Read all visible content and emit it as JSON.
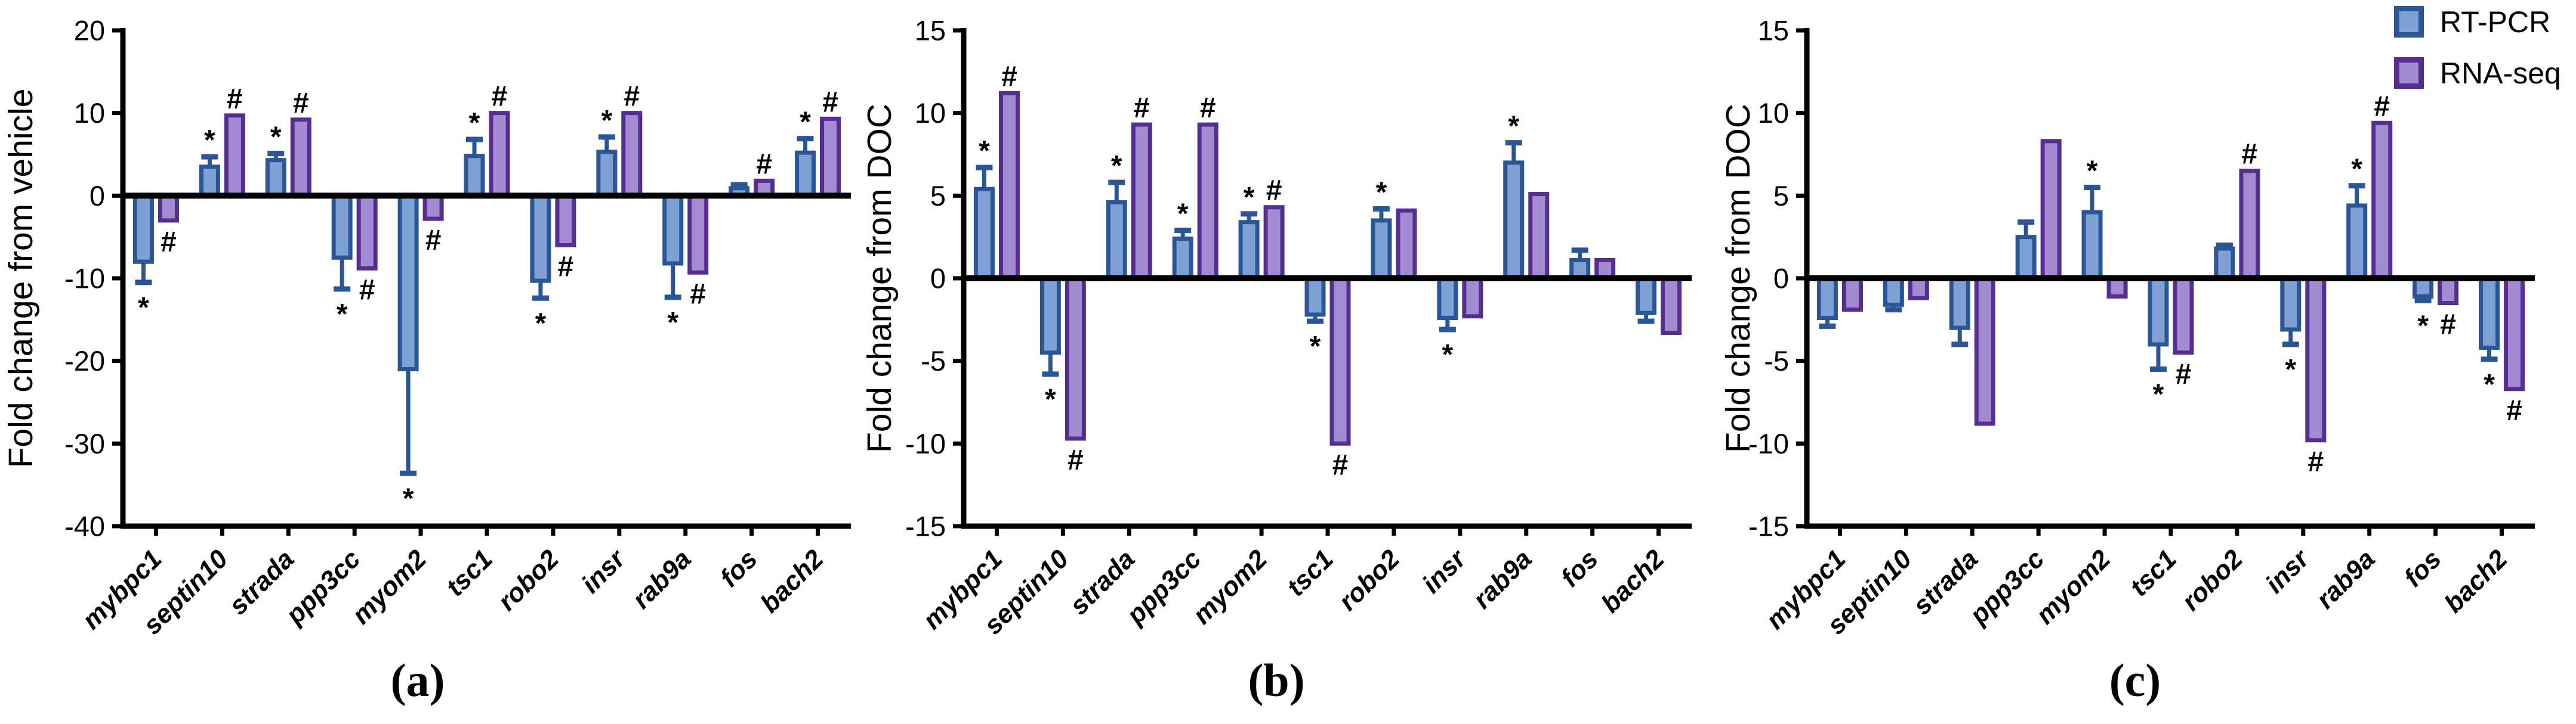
{
  "figure": {
    "background": "#ffffff"
  },
  "legend": {
    "position": "top-right",
    "items": [
      {
        "label": "RT-PCR",
        "fill": "#7EA0D4",
        "border": "#2A5696"
      },
      {
        "label": "RNA-seq",
        "fill": "#A38BD2",
        "border": "#552E90"
      }
    ]
  },
  "chart_data": [
    {
      "type": "bar",
      "panel_label": "(a)",
      "title": "",
      "xlabel": "",
      "ylabel": "Fold change from vehicle",
      "ylim": [
        -40,
        20
      ],
      "ytick_step": 10,
      "grid": false,
      "categories": [
        "mybpc1",
        "septin10",
        "strada",
        "ppp3cc",
        "myom2",
        "tsc1",
        "robo2",
        "insr",
        "rab9a",
        "fos",
        "bach2"
      ],
      "series": [
        {
          "name": "RT-PCR",
          "fill": "#7EA0D4",
          "border": "#2A5696",
          "values": [
            -8.0,
            3.5,
            4.3,
            -7.5,
            -21.0,
            4.8,
            -10.3,
            5.3,
            -8.2,
            0.9,
            5.2
          ],
          "errors": [
            2.5,
            1.2,
            0.8,
            3.8,
            12.6,
            2.0,
            2.1,
            1.8,
            4.1,
            0.4,
            1.7
          ],
          "sig": [
            "*",
            "*",
            "*",
            "*",
            "*",
            "*",
            "*",
            "*",
            "*",
            "",
            "*"
          ]
        },
        {
          "name": "RNA-seq",
          "fill": "#A38BD2",
          "border": "#552E90",
          "values": [
            -3.0,
            9.7,
            9.2,
            -8.8,
            -2.8,
            10.0,
            -6.0,
            10.0,
            -9.3,
            1.8,
            9.3
          ],
          "errors": null,
          "sig": [
            "#",
            "#",
            "#",
            "#",
            "#",
            "#",
            "#",
            "#",
            "#",
            "#",
            "#"
          ]
        }
      ]
    },
    {
      "type": "bar",
      "panel_label": "(b)",
      "title": "",
      "xlabel": "",
      "ylabel": "Fold change from DOC",
      "ylim": [
        -15,
        15
      ],
      "ytick_step": 5,
      "grid": false,
      "categories": [
        "mybpc1",
        "septin10",
        "strada",
        "ppp3cc",
        "myom2",
        "tsc1",
        "robo2",
        "insr",
        "rab9a",
        "fos",
        "bach2"
      ],
      "series": [
        {
          "name": "RT-PCR",
          "fill": "#7EA0D4",
          "border": "#2A5696",
          "values": [
            5.4,
            -4.5,
            4.6,
            2.4,
            3.4,
            -2.2,
            3.5,
            -2.4,
            7.0,
            1.1,
            -2.1
          ],
          "errors": [
            1.3,
            1.3,
            1.2,
            0.5,
            0.5,
            0.4,
            0.7,
            0.7,
            1.2,
            0.6,
            0.5
          ],
          "sig": [
            "*",
            "*",
            "*",
            "*",
            "*",
            "*",
            "*",
            "*",
            "*",
            "",
            ""
          ]
        },
        {
          "name": "RNA-seq",
          "fill": "#A38BD2",
          "border": "#552E90",
          "values": [
            11.2,
            -9.7,
            9.3,
            9.3,
            4.3,
            -10.0,
            4.1,
            -2.3,
            5.1,
            1.1,
            -3.3
          ],
          "errors": null,
          "sig": [
            "#",
            "#",
            "#",
            "#",
            "#",
            "#",
            "",
            "",
            "",
            "",
            ""
          ]
        }
      ]
    },
    {
      "type": "bar",
      "panel_label": "(c)",
      "title": "",
      "xlabel": "",
      "ylabel": "Fold change from DOC",
      "ylim": [
        -15,
        15
      ],
      "ytick_step": 5,
      "grid": false,
      "categories": [
        "mybpc1",
        "septin10",
        "strada",
        "ppp3cc",
        "myom2",
        "tsc1",
        "robo2",
        "insr",
        "rab9a",
        "fos",
        "bach2"
      ],
      "series": [
        {
          "name": "RT-PCR",
          "fill": "#7EA0D4",
          "border": "#2A5696",
          "values": [
            -2.4,
            -1.6,
            -3.0,
            2.5,
            4.0,
            -4.0,
            1.8,
            -3.1,
            4.4,
            -1.1,
            -4.2
          ],
          "errors": [
            0.5,
            0.3,
            1.0,
            0.9,
            1.5,
            1.5,
            0.2,
            0.9,
            1.2,
            0.25,
            0.7
          ],
          "sig": [
            "",
            "",
            "",
            "",
            "*",
            "*",
            "",
            "*",
            "*",
            "*",
            "*"
          ]
        },
        {
          "name": "RNA-seq",
          "fill": "#A38BD2",
          "border": "#552E90",
          "values": [
            -1.9,
            -1.2,
            -8.8,
            8.3,
            -1.1,
            -4.5,
            6.5,
            -9.8,
            9.4,
            -1.5,
            -6.7
          ],
          "errors": null,
          "sig": [
            "",
            "",
            "",
            "",
            "",
            "#",
            "#",
            "#",
            "#",
            "#",
            "#"
          ]
        }
      ]
    }
  ]
}
